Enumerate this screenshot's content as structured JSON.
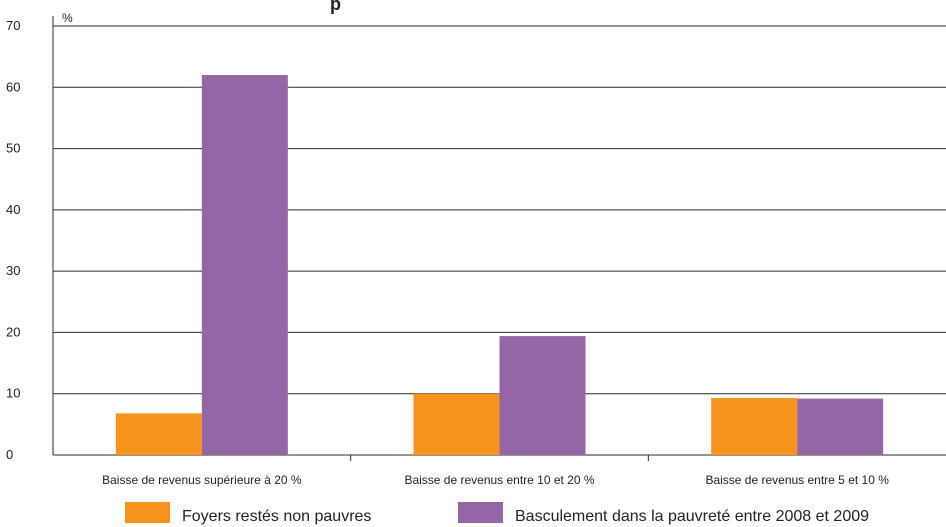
{
  "header": {
    "title_fragment": "p"
  },
  "chart_data": {
    "type": "bar",
    "categories": [
      "Baisse de revenus supérieure à 20 %",
      "Baisse de revenus entre 10 et 20 %",
      "Baisse de revenus entre 5 et 10 %"
    ],
    "series": [
      {
        "name": "Foyers restés non pauvres",
        "values": [
          6.8,
          10.0,
          9.3
        ],
        "color": "#f7941d"
      },
      {
        "name": "Basculement dans la pauvreté entre 2008 et 2009",
        "values": [
          62.0,
          19.4,
          9.2
        ],
        "color": "#9566a5"
      }
    ],
    "y_unit": "%",
    "ylim": [
      0,
      70
    ],
    "y_ticks": [
      "0",
      "10",
      "20",
      "30",
      "40",
      "50",
      "60",
      "70"
    ],
    "grid": true,
    "legend_position": "bottom"
  }
}
